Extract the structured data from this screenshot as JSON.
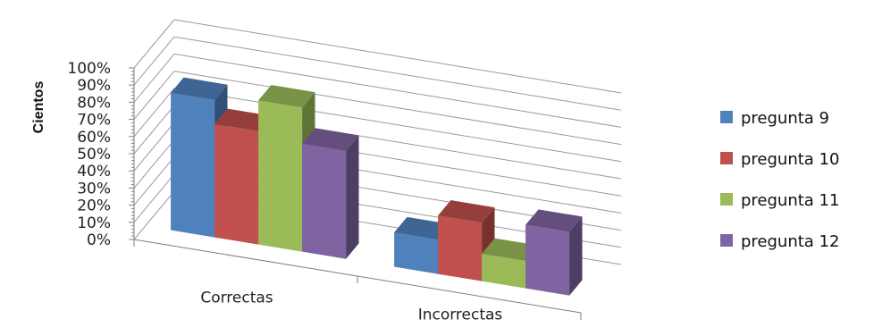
{
  "chart_data": {
    "type": "bar",
    "variant": "3d-clustered",
    "categories": [
      "Correctas",
      "Incorrectas"
    ],
    "series": [
      {
        "name": "pregunta 9",
        "values": [
          80,
          20
        ],
        "color": "#4F81BD"
      },
      {
        "name": "pregunta 10",
        "values": [
          66,
          34
        ],
        "color": "#C0504D"
      },
      {
        "name": "pregunta 11",
        "values": [
          84,
          16
        ],
        "color": "#9BBB59"
      },
      {
        "name": "pregunta 12",
        "values": [
          63,
          37
        ],
        "color": "#8064A2"
      }
    ],
    "ylabel": "Cientos",
    "ylim": [
      0,
      100
    ],
    "ytick_labels": [
      "0%",
      "10%",
      "20%",
      "30%",
      "40%",
      "50%",
      "60%",
      "70%",
      "80%",
      "90%",
      "100%"
    ],
    "grid": true,
    "legend": "right"
  }
}
